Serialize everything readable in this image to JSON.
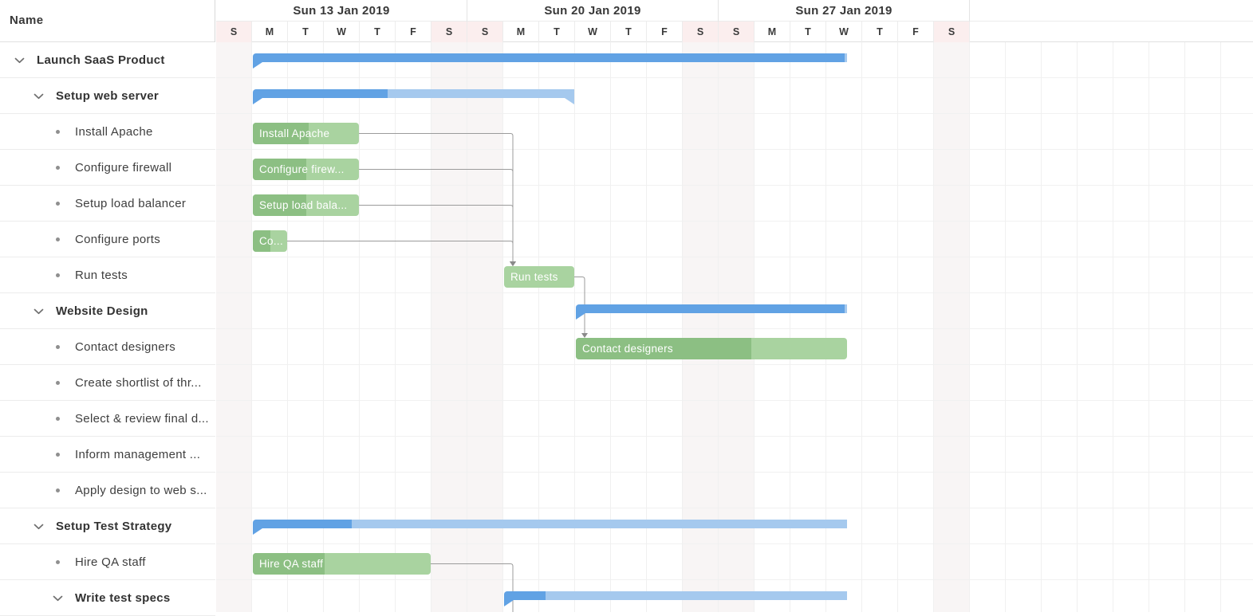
{
  "app": {
    "title_column": "Name"
  },
  "colors": {
    "parent_bar": "#61a2e4",
    "parent_bar_light": "#a5c9ee",
    "child_bar_progress": "#8cbf83",
    "child_bar": "#a9d3a0",
    "bar_label": "#ffffff",
    "connector_line": "#9b9b9b",
    "connector_arrow": "#8a8a8a",
    "weekend_header_bg": "#fbeeee",
    "weekend_body_bg": "#f8f5f5"
  },
  "timeline": {
    "weeks": [
      {
        "label": "Sun 13 Jan 2019"
      },
      {
        "label": "Sun 20 Jan 2019"
      },
      {
        "label": "Sun 27 Jan 2019"
      }
    ],
    "day_letters": [
      "S",
      "M",
      "T",
      "W",
      "T",
      "F",
      "S"
    ],
    "weekend_day_indices": [
      0,
      6
    ]
  },
  "chart_data": {
    "type": "gantt",
    "timescale": "days",
    "day_zero_label": "Sun 13 Jan 2019",
    "tasks": [
      {
        "name": "Launch SaaS Product",
        "level": 1,
        "kind": "parent",
        "bar": {
          "type": "parent",
          "start": 1,
          "progress_day": 17.5,
          "clip_right": true
        }
      },
      {
        "name": "Setup web server",
        "level": 2,
        "kind": "parent",
        "bar": {
          "type": "parent",
          "start": 1,
          "end": 10,
          "progress_day": 4.78
        }
      },
      {
        "name": "Install Apache",
        "level": 3,
        "kind": "leaf",
        "bar": {
          "type": "child",
          "start": 1,
          "end": 4,
          "progress_day": 2.58,
          "label": "Install Apache"
        }
      },
      {
        "name": "Configure firewall",
        "level": 3,
        "kind": "leaf",
        "bar": {
          "type": "child",
          "start": 1,
          "end": 4,
          "progress_day": 2.51,
          "label": "Configure firew..."
        }
      },
      {
        "name": "Setup load balancer",
        "level": 3,
        "kind": "leaf",
        "bar": {
          "type": "child",
          "start": 1,
          "end": 4,
          "progress_day": 2.51,
          "label": "Setup load bala..."
        }
      },
      {
        "name": "Configure ports",
        "level": 3,
        "kind": "leaf",
        "bar": {
          "type": "child",
          "start": 1,
          "end": 2,
          "progress_day": 1.51,
          "label": "Co..."
        }
      },
      {
        "name": "Run tests",
        "level": 3,
        "kind": "leaf",
        "bar": {
          "type": "child",
          "start": 8,
          "end": 10,
          "progress_day": 8,
          "label": "Run tests"
        }
      },
      {
        "name": "Website Design",
        "level": 2,
        "kind": "parent",
        "bar": {
          "type": "parent",
          "start": 10,
          "progress_day": 17.5,
          "clip_right": true
        }
      },
      {
        "name": "Contact designers",
        "level": 3,
        "kind": "leaf",
        "bar": {
          "type": "child",
          "start": 10,
          "progress_day": 14.9,
          "clip_right": true,
          "label": "Contact designers"
        }
      },
      {
        "name": "Create shortlist of thr...",
        "level": 3,
        "kind": "leaf",
        "bar": null
      },
      {
        "name": "Select & review final d...",
        "level": 3,
        "kind": "leaf",
        "bar": null
      },
      {
        "name": "Inform management ...",
        "level": 3,
        "kind": "leaf",
        "bar": null
      },
      {
        "name": "Apply design to web s...",
        "level": 3,
        "kind": "leaf",
        "bar": null
      },
      {
        "name": "Setup Test Strategy",
        "level": 2,
        "kind": "parent",
        "bar": {
          "type": "parent",
          "start": 1,
          "progress_day": 3.78,
          "clip_right": true
        }
      },
      {
        "name": "Hire QA staff",
        "level": 3,
        "kind": "leaf",
        "bar": {
          "type": "child",
          "start": 1,
          "end": 6,
          "progress_day": 3.02,
          "label": "Hire QA staff"
        }
      },
      {
        "name": "Write test specs",
        "level": 3,
        "kind": "parent",
        "bar": {
          "type": "parent",
          "start": 8,
          "progress_day": 9.18,
          "clip_right": true
        }
      }
    ],
    "dependencies": [
      {
        "from": 2,
        "to": 6
      },
      {
        "from": 3,
        "to": 6
      },
      {
        "from": 4,
        "to": 6
      },
      {
        "from": 5,
        "to": 6
      },
      {
        "from": 6,
        "to": 8
      },
      {
        "from": 14,
        "to": 15,
        "drop_to_bottom": true
      }
    ]
  }
}
